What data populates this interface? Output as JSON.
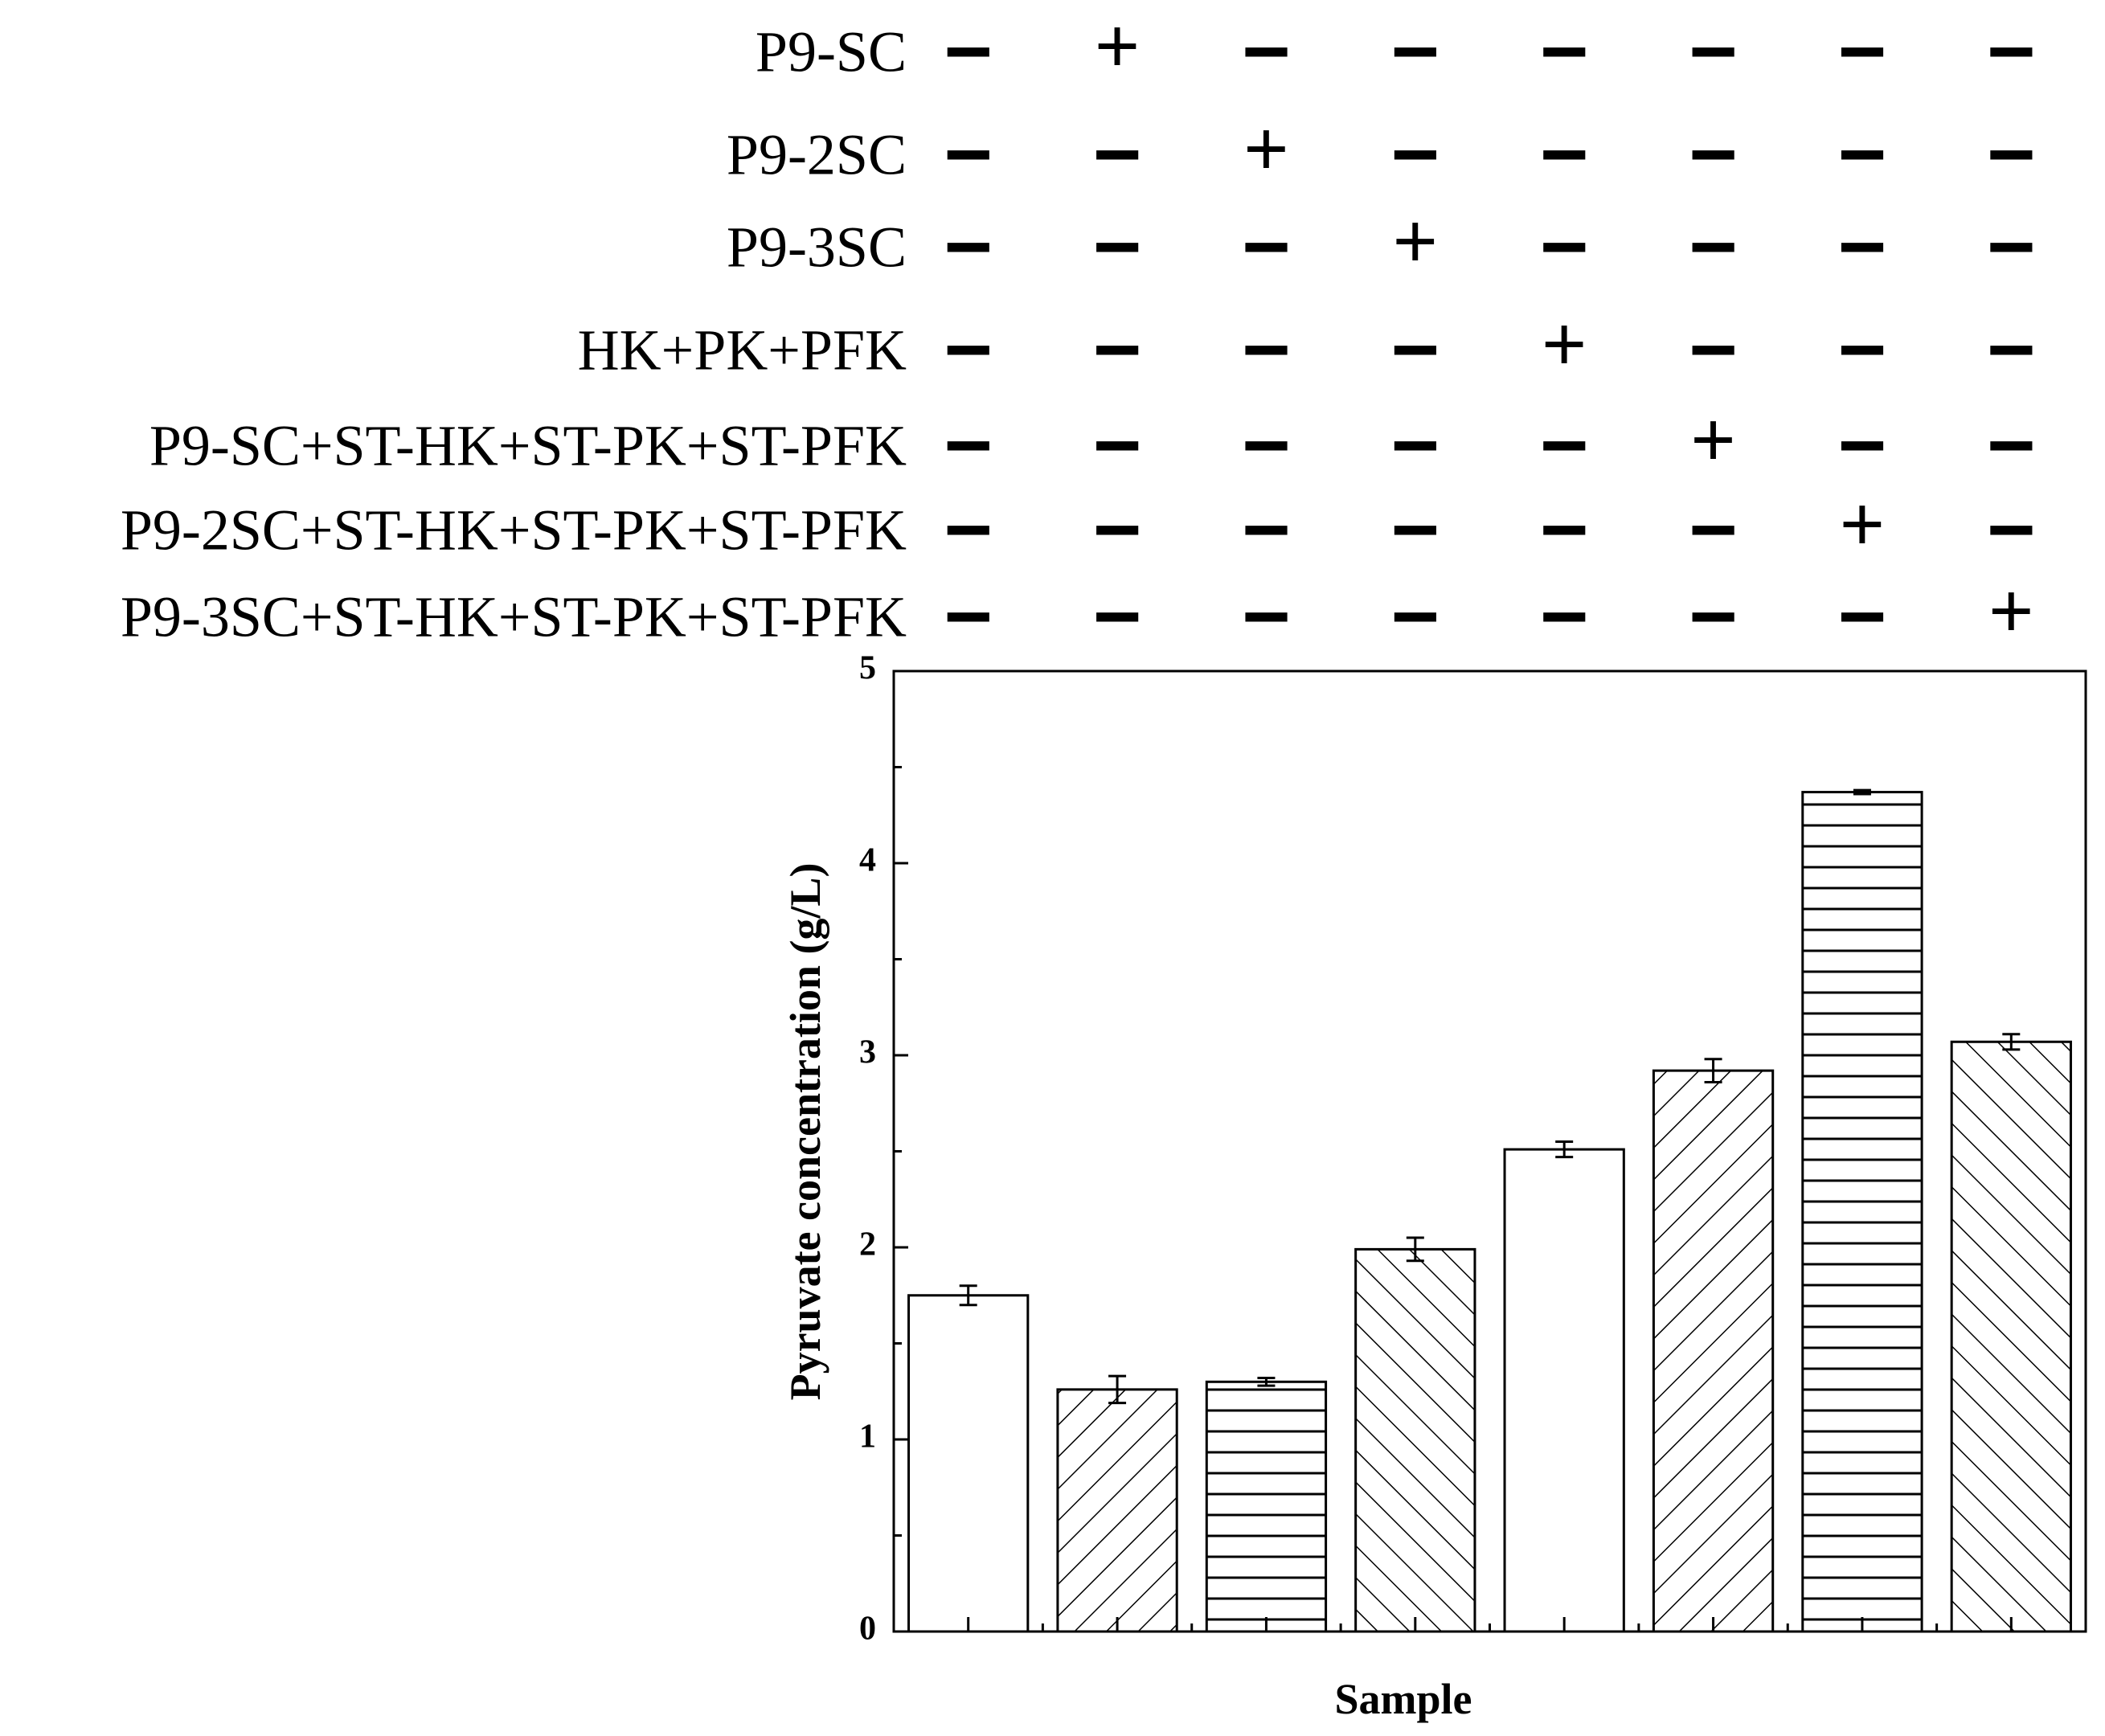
{
  "conditions": [
    {
      "label": "P9-SC",
      "signs": [
        "−",
        "+",
        "−",
        "−",
        "−",
        "−",
        "−",
        "−"
      ]
    },
    {
      "label": "P9-2SC",
      "signs": [
        "−",
        "−",
        "+",
        "−",
        "−",
        "−",
        "−",
        "−"
      ]
    },
    {
      "label": "P9-3SC",
      "signs": [
        "−",
        "−",
        "−",
        "+",
        "−",
        "−",
        "−",
        "−"
      ]
    },
    {
      "label": "HK+PK+PFK",
      "signs": [
        "−",
        "−",
        "−",
        "−",
        "+",
        "−",
        "−",
        "−"
      ]
    },
    {
      "label": "P9-SC+ST-HK+ST-PK+ST-PFK",
      "signs": [
        "−",
        "−",
        "−",
        "−",
        "−",
        "+",
        "−",
        "−"
      ]
    },
    {
      "label": "P9-2SC+ST-HK+ST-PK+ST-PFK",
      "signs": [
        "−",
        "−",
        "−",
        "−",
        "−",
        "−",
        "+",
        "−"
      ]
    },
    {
      "label": "P9-3SC+ST-HK+ST-PK+ST-PFK",
      "signs": [
        "−",
        "−",
        "−",
        "−",
        "−",
        "−",
        "−",
        "+"
      ]
    }
  ],
  "chart_data": {
    "type": "bar",
    "title": "",
    "xlabel": "Sample",
    "ylabel": "Pyruvate concentration (g/L)",
    "ylim": [
      0,
      5
    ],
    "yticks": [
      "0",
      "1",
      "2",
      "3",
      "4",
      "5"
    ],
    "grid": false,
    "values": [
      1.75,
      1.26,
      1.3,
      1.99,
      2.51,
      2.92,
      4.37,
      3.07
    ],
    "errors": [
      0.05,
      0.07,
      0.02,
      0.06,
      0.04,
      0.06,
      0.01,
      0.04
    ],
    "patterns": [
      "none",
      "fwd-diag",
      "horizontal",
      "back-diag",
      "none",
      "fwd-diag",
      "horizontal",
      "back-diag"
    ]
  }
}
